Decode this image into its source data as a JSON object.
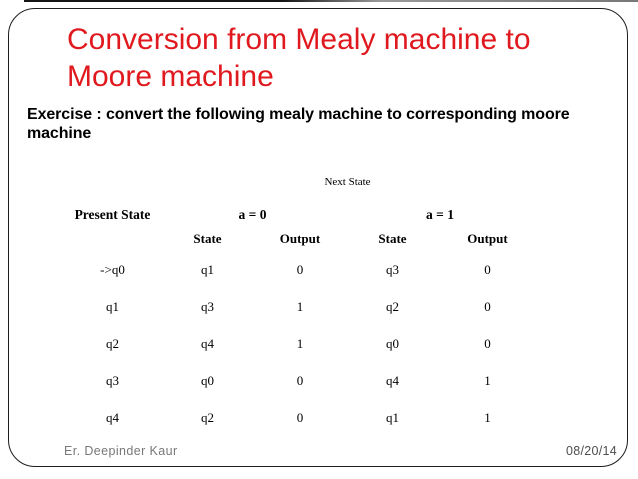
{
  "slide": {
    "title": "Conversion from Mealy machine to Moore machine",
    "exercise_text": "Exercise : convert the following mealy machine to corresponding moore machine",
    "footer": {
      "author": "Er. Deepinder Kaur",
      "date": "08/20/14"
    },
    "colors": {
      "title_red": "#e0191f",
      "body_text": "#000000",
      "footer_gray": "#787878",
      "frame_border": "#1d1d1d"
    }
  },
  "table": {
    "next_state_label": "Next State",
    "present_state_label": "Present State",
    "a0_label": "a = 0",
    "a1_label": "a = 1",
    "sub_headers": [
      "State",
      "Output",
      "State",
      "Output"
    ],
    "rows": [
      [
        "->q0",
        "q1",
        "0",
        "q3",
        "0"
      ],
      [
        "q1",
        "q3",
        "1",
        "q2",
        "0"
      ],
      [
        "q2",
        "q4",
        "1",
        "q0",
        "0"
      ],
      [
        "q3",
        "q0",
        "0",
        "q4",
        "1"
      ],
      [
        "q4",
        "q2",
        "0",
        "q1",
        "1"
      ]
    ]
  }
}
